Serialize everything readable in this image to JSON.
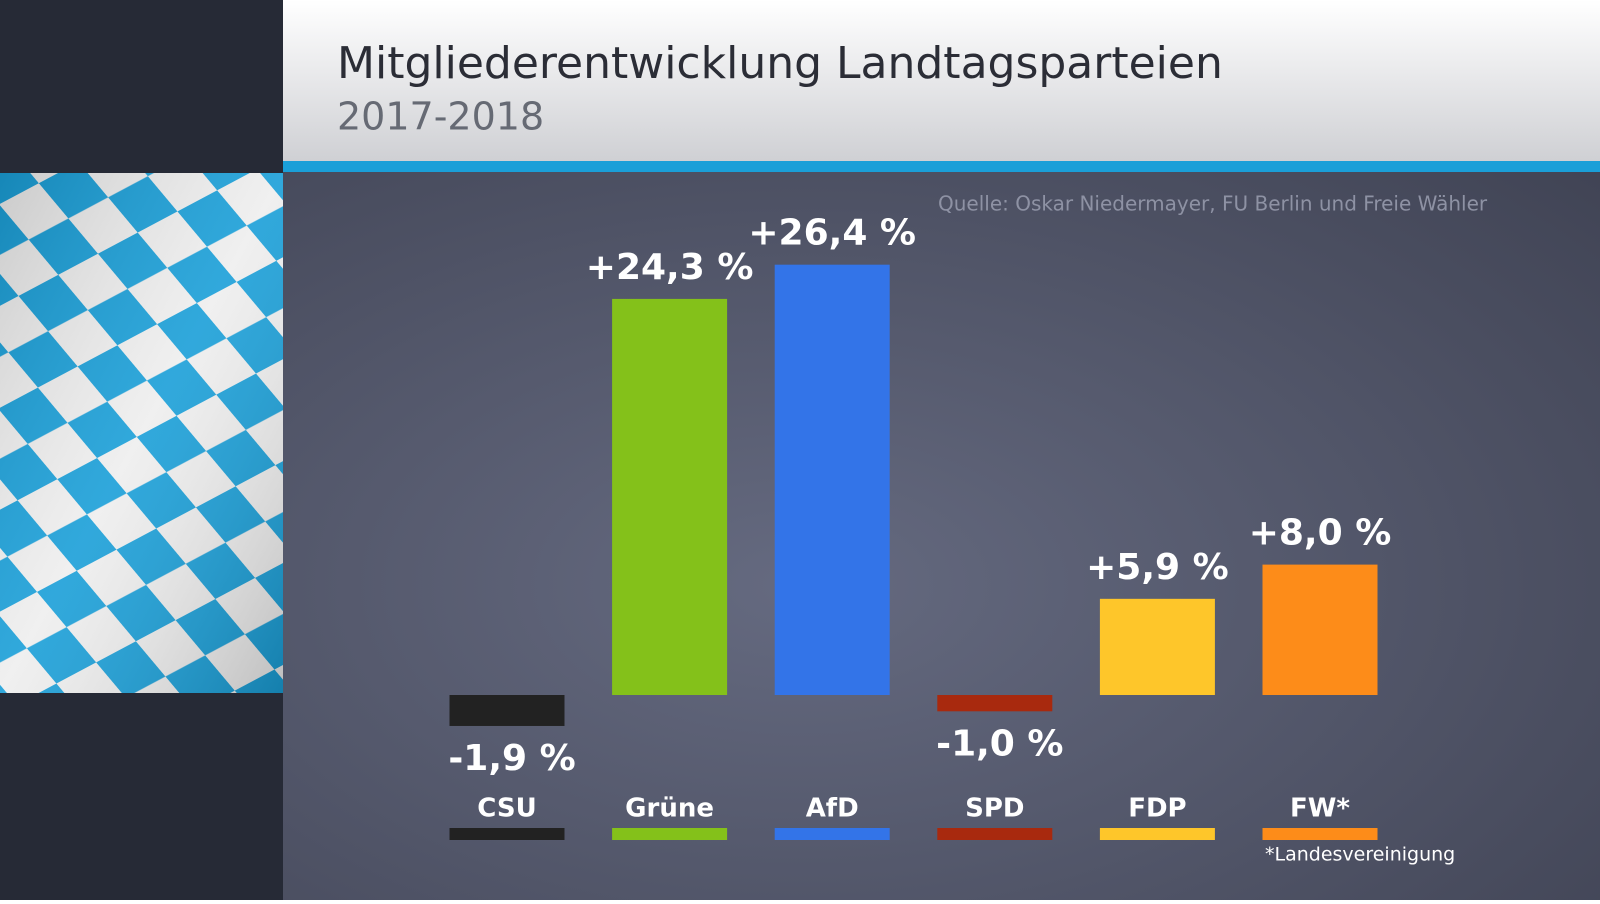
{
  "chart_data": {
    "type": "bar",
    "title": "Mitgliederentwicklung Landtagsparteien",
    "subtitle": "2017-2018",
    "source": "Quelle: Oskar Niedermayer, FU Berlin und Freie Wähler",
    "footnote": "*Landesvereinigung",
    "categories": [
      "CSU",
      "Grüne",
      "AfD",
      "SPD",
      "FDP",
      "FW*"
    ],
    "values": [
      -1.9,
      24.3,
      26.4,
      -1.0,
      5.9,
      8.0
    ],
    "value_labels": [
      "-1,9 %",
      "+24,3 %",
      "+26,4 %",
      "-1,0 %",
      "+5,9 %",
      "+8,0 %"
    ],
    "colors": [
      "#222222",
      "#84c11a",
      "#3374e8",
      "#a8290e",
      "#fec62a",
      "#fd8c19"
    ]
  }
}
